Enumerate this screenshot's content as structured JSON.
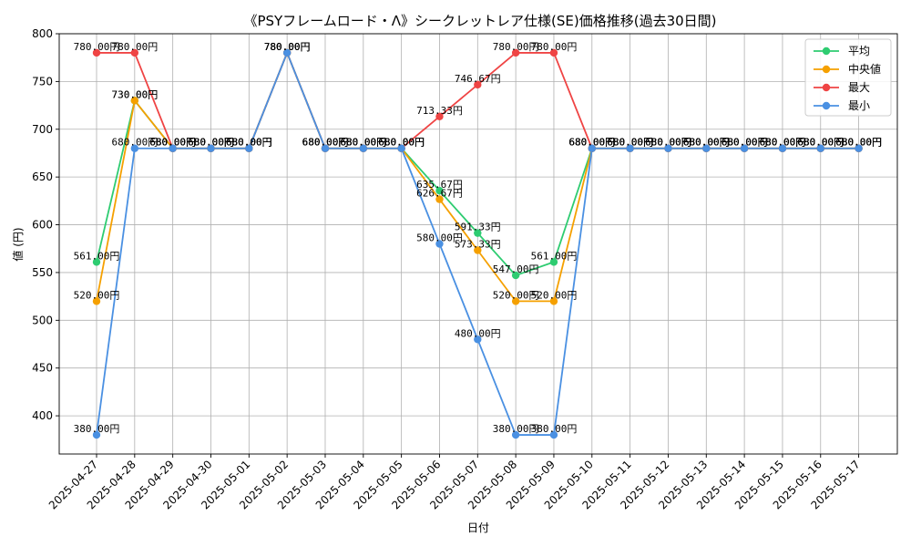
{
  "chart_data": {
    "type": "line",
    "title": "《PSYフレームロード・Λ》シークレットレア仕様(SE)価格推移(過去30日間)",
    "xlabel": "日付",
    "ylabel": "値 (円)",
    "ylim": [
      360,
      800
    ],
    "yticks": [
      400,
      450,
      500,
      550,
      600,
      650,
      700,
      750,
      800
    ],
    "grid": true,
    "legend_position": "top-right",
    "label_suffix": "円",
    "categories": [
      "2025-04-27",
      "2025-04-28",
      "2025-04-29",
      "2025-04-30",
      "2025-05-01",
      "2025-05-02",
      "2025-05-03",
      "2025-05-04",
      "2025-05-05",
      "2025-05-06",
      "2025-05-07",
      "2025-05-08",
      "2025-05-09",
      "2025-05-10",
      "2025-05-11",
      "2025-05-12",
      "2025-05-13",
      "2025-05-14",
      "2025-05-15",
      "2025-05-16",
      "2025-05-17"
    ],
    "series": [
      {
        "name": "平均",
        "color": "#2ecc71",
        "values": [
          561.0,
          730.0,
          680.0,
          680.0,
          680.0,
          780.0,
          680.0,
          680.0,
          680.0,
          635.67,
          591.33,
          547.0,
          561.0,
          680.0,
          680.0,
          680.0,
          680.0,
          680.0,
          680.0,
          680.0,
          680.0
        ]
      },
      {
        "name": "中央値",
        "color": "#f5a000",
        "values": [
          520.0,
          730.0,
          680.0,
          680.0,
          680.0,
          780.0,
          680.0,
          680.0,
          680.0,
          626.67,
          573.33,
          520.0,
          520.0,
          680.0,
          680.0,
          680.0,
          680.0,
          680.0,
          680.0,
          680.0,
          680.0
        ]
      },
      {
        "name": "最大",
        "color": "#ef4444",
        "values": [
          780.0,
          780.0,
          680.0,
          680.0,
          680.0,
          780.0,
          680.0,
          680.0,
          680.0,
          713.33,
          746.67,
          780.0,
          780.0,
          680.0,
          680.0,
          680.0,
          680.0,
          680.0,
          680.0,
          680.0,
          680.0
        ]
      },
      {
        "name": "最小",
        "color": "#4a90e2",
        "values": [
          380.0,
          680.0,
          680.0,
          680.0,
          680.0,
          780.0,
          680.0,
          680.0,
          680.0,
          580.0,
          480.0,
          380.0,
          380.0,
          680.0,
          680.0,
          680.0,
          680.0,
          680.0,
          680.0,
          680.0,
          680.0
        ]
      }
    ]
  }
}
